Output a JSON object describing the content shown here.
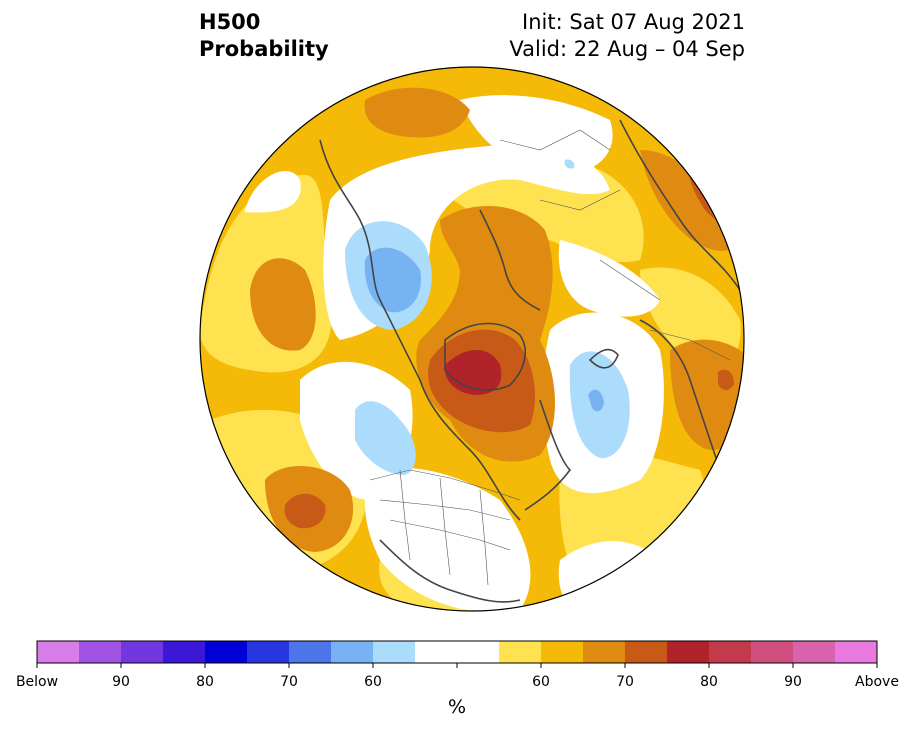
{
  "title": {
    "left_line1": "H500",
    "left_line2": "Probability",
    "right_line1": "Init: Sat 07 Aug 2021",
    "right_line2": "Valid: 22 Aug – 04 Sep"
  },
  "colorbar": {
    "colors": [
      "#d77ce9",
      "#a052e3",
      "#7237e0",
      "#3c17d6",
      "#0000d9",
      "#2637e0",
      "#4d75e9",
      "#77b2f3",
      "#abdcfb",
      "#ffffff",
      "#ffffff",
      "#ffe24f",
      "#f4ba07",
      "#df8b11",
      "#c75a17",
      "#b0232a",
      "#c23a4b",
      "#d14f7f",
      "#d962ad",
      "#e979df"
    ],
    "tick_labels": [
      "Below",
      "90",
      "80",
      "70",
      "60",
      "60",
      "70",
      "80",
      "90",
      "Above"
    ],
    "unit": "%"
  },
  "palette": {
    "base_yellow": "#f4ba07",
    "light_yellow": "#ffe24f",
    "orange": "#df8b11",
    "dark_orange": "#c75a17",
    "red": "#b0232a",
    "light_blue": "#abdcfb",
    "blue": "#77b2f3",
    "land_line": "#444444"
  }
}
